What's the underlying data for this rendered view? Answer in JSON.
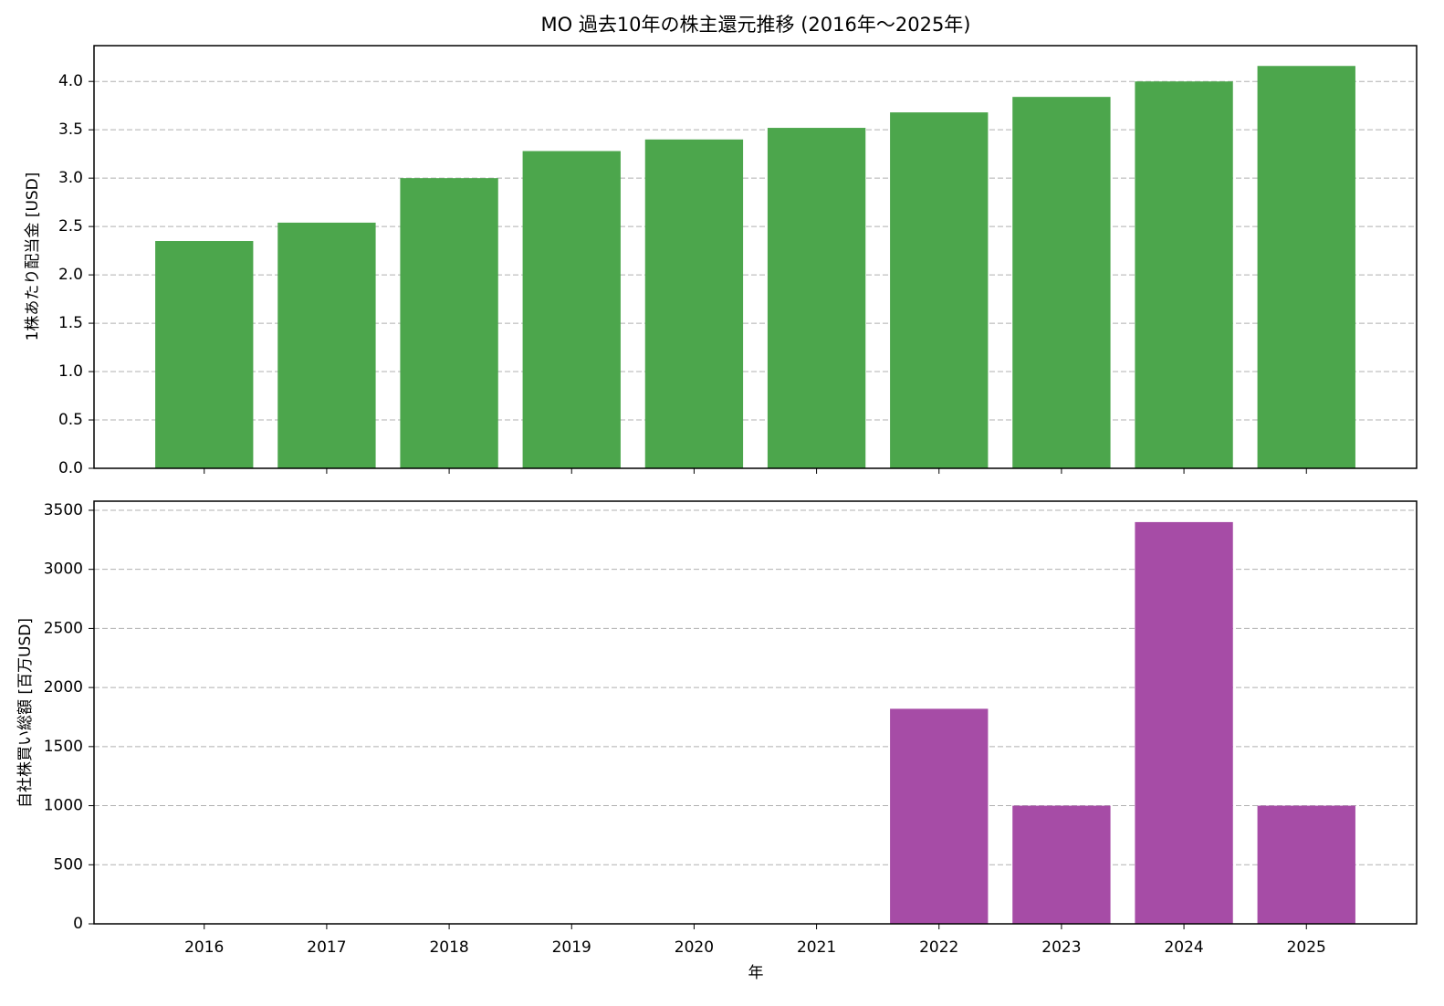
{
  "chart_data": [
    {
      "type": "bar",
      "title": "MO 過去10年の株主還元推移 (2016年～2025年)",
      "y_label": "1株あたり配当金 [USD]",
      "values": [
        2.35,
        2.54,
        3.0,
        3.28,
        3.4,
        3.52,
        3.68,
        3.84,
        4.0,
        4.16
      ],
      "color": "#4ca64c",
      "ylim": [
        0,
        4.37
      ],
      "yticks": [
        {
          "value": 0,
          "label": "0.0"
        },
        0.5,
        {
          "value": 1,
          "label": "1.0"
        },
        1.5,
        {
          "value": 2,
          "label": "2.0"
        },
        2.5,
        {
          "value": 3,
          "label": "3.0"
        },
        3.5,
        {
          "value": 4,
          "label": "4.0"
        }
      ],
      "grid": true
    },
    {
      "type": "bar",
      "x_label": "年",
      "y_label": "自社株買い総額 [百万USD]",
      "categories": [
        "2016",
        "2017",
        "2018",
        "2019",
        "2020",
        "2021",
        "2022",
        "2023",
        "2024",
        "2025"
      ],
      "values": [
        0,
        0,
        0,
        0,
        0,
        0,
        1820,
        1000,
        3400,
        1000
      ],
      "color": "#a64ca6",
      "ylim": [
        0,
        3577
      ],
      "yticks": [
        0,
        500,
        1000,
        1500,
        2000,
        2500,
        3000,
        3500
      ],
      "grid": true
    }
  ]
}
